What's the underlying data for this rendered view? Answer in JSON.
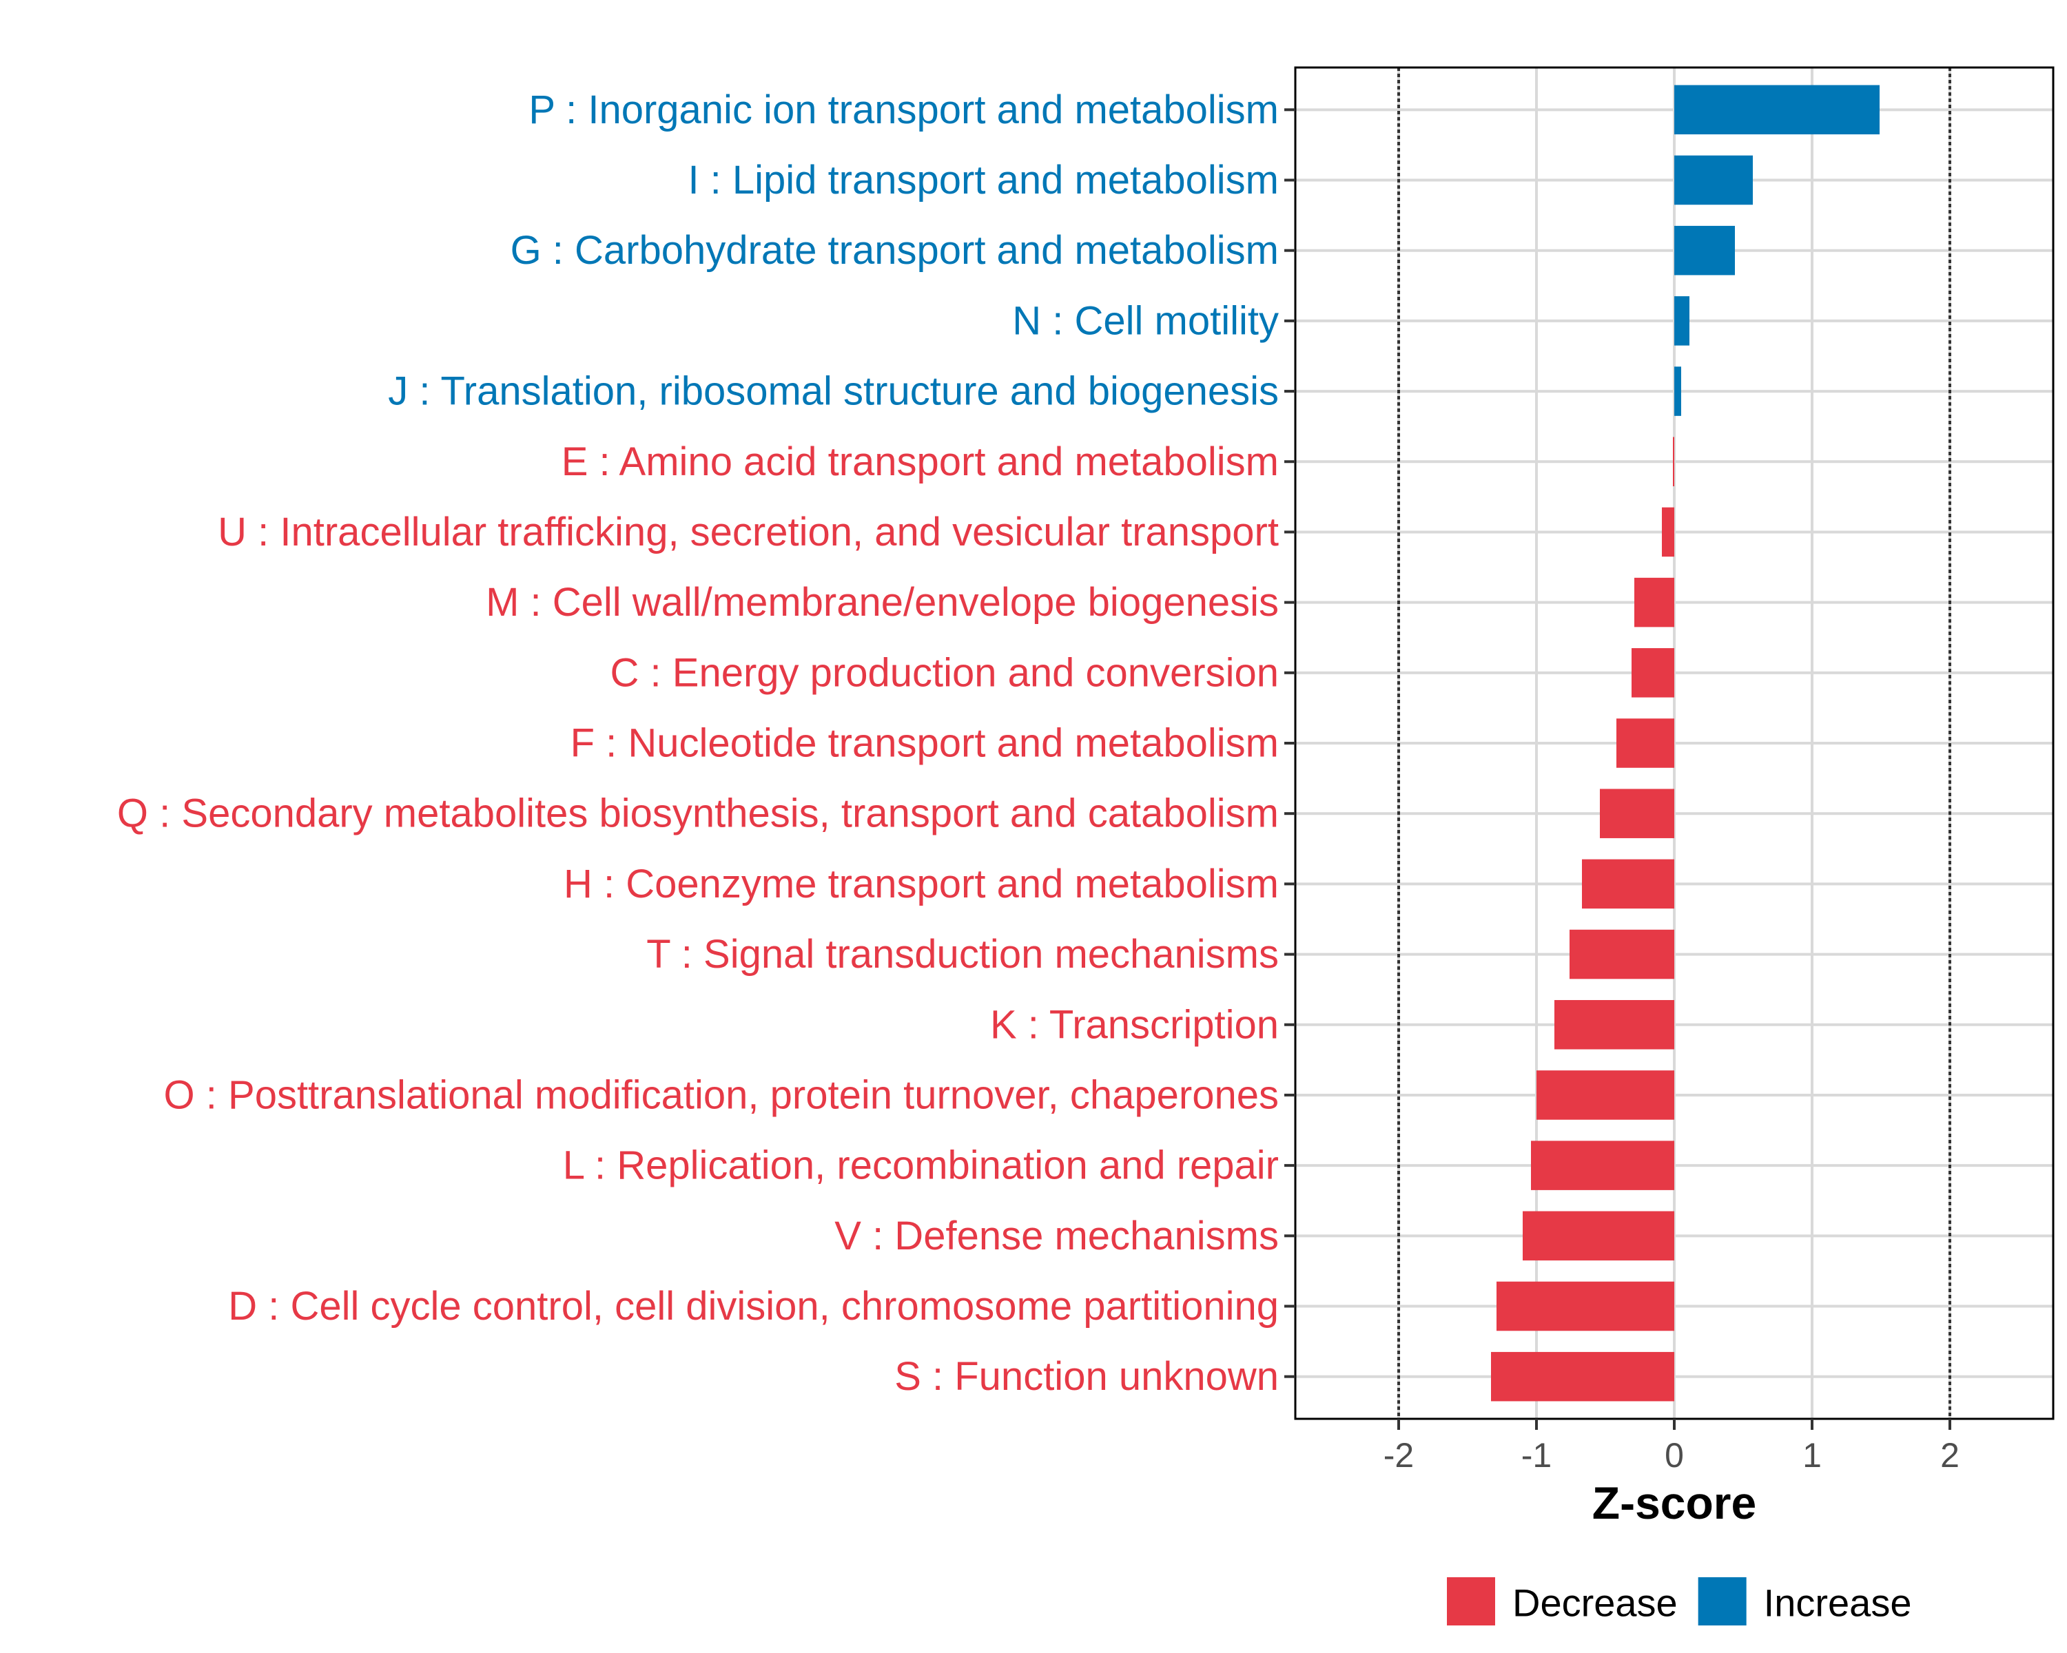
{
  "chart_data": {
    "type": "bar",
    "orientation": "horizontal",
    "xlabel": "Z-score",
    "ylabel": "",
    "xlim": [
      -2.75,
      2.75
    ],
    "xticks": [
      -2,
      -1,
      0,
      1,
      2
    ],
    "reference_lines": [
      -2,
      2
    ],
    "grid": true,
    "legend_position": "bottom",
    "colors": {
      "Decrease": "#e63946",
      "Increase": "#0077b6"
    },
    "legend": [
      {
        "key": "Decrease",
        "label": "Decrease"
      },
      {
        "key": "Increase",
        "label": "Increase"
      }
    ],
    "bars": [
      {
        "label": "P : Inorganic ion transport and metabolism",
        "value": 1.49,
        "direction": "Increase"
      },
      {
        "label": "I : Lipid transport and metabolism",
        "value": 0.57,
        "direction": "Increase"
      },
      {
        "label": "G : Carbohydrate transport and metabolism",
        "value": 0.44,
        "direction": "Increase"
      },
      {
        "label": "N : Cell motility",
        "value": 0.11,
        "direction": "Increase"
      },
      {
        "label": "J : Translation, ribosomal structure and biogenesis",
        "value": 0.05,
        "direction": "Increase"
      },
      {
        "label": "E : Amino acid transport and metabolism",
        "value": -0.01,
        "direction": "Decrease"
      },
      {
        "label": "U : Intracellular trafficking, secretion, and vesicular transport",
        "value": -0.09,
        "direction": "Decrease"
      },
      {
        "label": "M : Cell wall/membrane/envelope biogenesis",
        "value": -0.29,
        "direction": "Decrease"
      },
      {
        "label": "C : Energy production and conversion",
        "value": -0.31,
        "direction": "Decrease"
      },
      {
        "label": "F : Nucleotide transport and metabolism",
        "value": -0.42,
        "direction": "Decrease"
      },
      {
        "label": "Q : Secondary metabolites biosynthesis, transport and catabolism",
        "value": -0.54,
        "direction": "Decrease"
      },
      {
        "label": "H : Coenzyme transport and metabolism",
        "value": -0.67,
        "direction": "Decrease"
      },
      {
        "label": "T : Signal transduction mechanisms",
        "value": -0.76,
        "direction": "Decrease"
      },
      {
        "label": "K : Transcription",
        "value": -0.87,
        "direction": "Decrease"
      },
      {
        "label": "O : Posttranslational modification, protein turnover, chaperones",
        "value": -1.0,
        "direction": "Decrease"
      },
      {
        "label": "L : Replication, recombination and repair",
        "value": -1.04,
        "direction": "Decrease"
      },
      {
        "label": "V : Defense mechanisms",
        "value": -1.1,
        "direction": "Decrease"
      },
      {
        "label": "D : Cell cycle control, cell division, chromosome partitioning",
        "value": -1.29,
        "direction": "Decrease"
      },
      {
        "label": "S : Function unknown",
        "value": -1.33,
        "direction": "Decrease"
      }
    ]
  }
}
